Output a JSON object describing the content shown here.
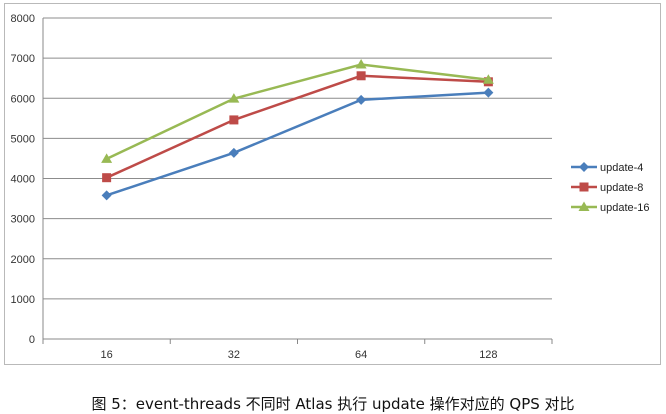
{
  "chart_data": {
    "type": "line",
    "title": "",
    "xlabel": "",
    "ylabel": "",
    "categories": [
      "16",
      "32",
      "64",
      "128"
    ],
    "ylim": [
      0,
      8000
    ],
    "yticks": [
      0,
      1000,
      2000,
      3000,
      4000,
      5000,
      6000,
      7000,
      8000
    ],
    "grid": true,
    "legend_position": "right",
    "series": [
      {
        "name": "update-4",
        "color": "#4a7ebb",
        "marker": "diamond",
        "values": [
          3580,
          4640,
          5960,
          6140
        ]
      },
      {
        "name": "update-8",
        "color": "#be4b48",
        "marker": "square",
        "values": [
          4020,
          5460,
          6560,
          6410
        ]
      },
      {
        "name": "update-16",
        "color": "#98b954",
        "marker": "triangle",
        "values": [
          4490,
          5990,
          6840,
          6460
        ]
      }
    ]
  },
  "caption": "图 5：event-threads 不同时 Atlas 执行 update 操作对应的 QPS 对比"
}
